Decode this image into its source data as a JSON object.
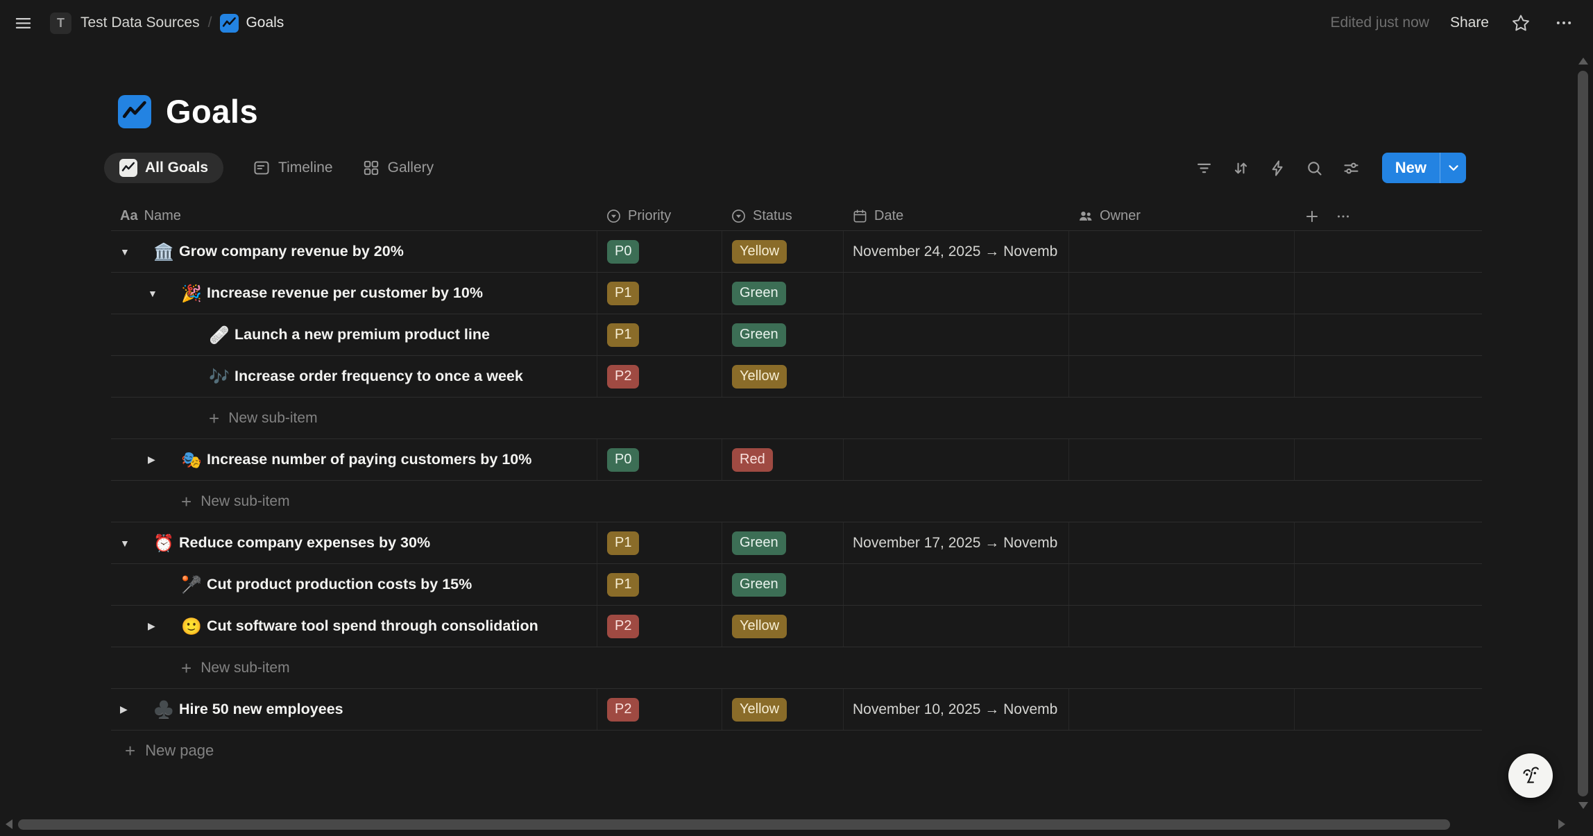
{
  "topbar": {
    "workspace_initial": "T",
    "breadcrumb_root": "Test Data Sources",
    "breadcrumb_separator": "/",
    "breadcrumb_page": "Goals",
    "edited_status": "Edited just now",
    "share_label": "Share"
  },
  "page": {
    "title": "Goals",
    "icon": "blue-zigzag-chart"
  },
  "views": {
    "tabs": [
      {
        "label": "All Goals",
        "icon": "chart-icon",
        "active": true
      },
      {
        "label": "Timeline",
        "icon": "timeline-icon",
        "active": false
      },
      {
        "label": "Gallery",
        "icon": "gallery-icon",
        "active": false
      }
    ],
    "new_button_label": "New"
  },
  "table": {
    "columns": [
      {
        "label": "Name",
        "type": "title"
      },
      {
        "label": "Priority",
        "type": "select"
      },
      {
        "label": "Status",
        "type": "select"
      },
      {
        "label": "Date",
        "type": "date"
      },
      {
        "label": "Owner",
        "type": "person"
      }
    ],
    "new_subitem_label": "New sub-item",
    "new_page_label": "New page",
    "rows": [
      {
        "type": "item",
        "level": 0,
        "toggle": "expanded",
        "emoji": "🏛️",
        "emoji_name": "classical-building",
        "name": "Grow company revenue by 20%",
        "priority": {
          "label": "P0",
          "color": "green"
        },
        "status": {
          "label": "Yellow",
          "color": "yellow"
        },
        "date": "November 24, 2025 → Novemb"
      },
      {
        "type": "item",
        "level": 1,
        "toggle": "expanded",
        "emoji": "🎉",
        "emoji_name": "party-popper",
        "name": "Increase revenue per customer by 10%",
        "priority": {
          "label": "P1",
          "color": "yellow"
        },
        "status": {
          "label": "Green",
          "color": "green"
        },
        "date": ""
      },
      {
        "type": "item",
        "level": 2,
        "toggle": null,
        "emoji": "🩹",
        "emoji_name": "adhesive-bandage",
        "name": "Launch a new premium product line",
        "priority": {
          "label": "P1",
          "color": "yellow"
        },
        "status": {
          "label": "Green",
          "color": "green"
        },
        "date": ""
      },
      {
        "type": "item",
        "level": 2,
        "toggle": null,
        "emoji": "🎶",
        "emoji_name": "musical-notes",
        "name": "Increase order frequency to once a week",
        "priority": {
          "label": "P2",
          "color": "red"
        },
        "status": {
          "label": "Yellow",
          "color": "yellow"
        },
        "date": ""
      },
      {
        "type": "new-subitem",
        "level": 2
      },
      {
        "type": "item",
        "level": 1,
        "toggle": "collapsed",
        "emoji": "🎭",
        "emoji_name": "performing-arts",
        "name": "Increase number of paying customers by 10%",
        "priority": {
          "label": "P0",
          "color": "green"
        },
        "status": {
          "label": "Red",
          "color": "red"
        },
        "date": ""
      },
      {
        "type": "new-subitem",
        "level": 1
      },
      {
        "type": "item",
        "level": 0,
        "toggle": "expanded",
        "emoji": "⏰",
        "emoji_name": "alarm-clock",
        "name": "Reduce company expenses by 30%",
        "priority": {
          "label": "P1",
          "color": "yellow"
        },
        "status": {
          "label": "Green",
          "color": "green"
        },
        "date": "November 17, 2025 → Novemb"
      },
      {
        "type": "item",
        "level": 1,
        "toggle": null,
        "emoji": "🥍",
        "emoji_name": "lacrosse",
        "name": "Cut product production costs by 15%",
        "priority": {
          "label": "P1",
          "color": "yellow"
        },
        "status": {
          "label": "Green",
          "color": "green"
        },
        "date": ""
      },
      {
        "type": "item",
        "level": 1,
        "toggle": "collapsed",
        "emoji": "🙂",
        "emoji_name": "slightly-smiling-face",
        "name": "Cut software tool spend through consolidation",
        "priority": {
          "label": "P2",
          "color": "red"
        },
        "status": {
          "label": "Yellow",
          "color": "yellow"
        },
        "date": ""
      },
      {
        "type": "new-subitem",
        "level": 1
      },
      {
        "type": "item",
        "level": 0,
        "toggle": "collapsed",
        "emoji": "♣️",
        "emoji_name": "club-suit",
        "name": "Hire 50 new employees",
        "priority": {
          "label": "P2",
          "color": "red"
        },
        "status": {
          "label": "Yellow",
          "color": "yellow"
        },
        "date": "November 10, 2025 → Novemb"
      }
    ]
  },
  "colors": {
    "accent_blue": "#2383e2",
    "tags": {
      "green": {
        "bg": "#3c6e55",
        "text": "#e9f3ed"
      },
      "yellow": {
        "bg": "#8a6c29",
        "text": "#f7eed3"
      },
      "red": {
        "bg": "#9f4a42",
        "text": "#fae2de"
      }
    }
  },
  "icons": {
    "menu": "hamburger-lines",
    "favorite": "star-outline",
    "more": "ellipsis-dots",
    "filter": "funnel-lines",
    "sort": "up-down-arrows",
    "automations": "lightning-bolt",
    "search": "magnifier",
    "view_settings": "sliders",
    "new_dropdown": "chevron-down",
    "title_column": "Aa",
    "select_column": "circle-with-triangle",
    "date_column": "calendar",
    "owner_column": "two-people",
    "add": "plus",
    "ai_assistant": "sketch-face"
  }
}
